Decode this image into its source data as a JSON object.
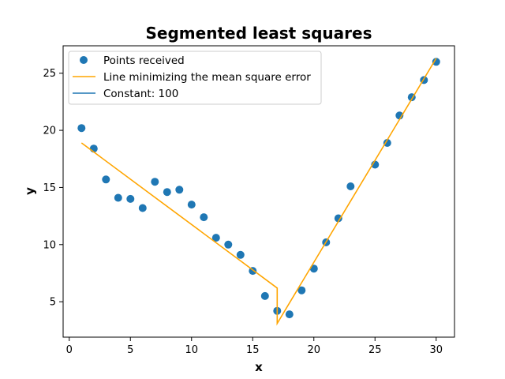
{
  "chart_data": {
    "type": "scatter",
    "title": "Segmented least squares",
    "xlabel": "x",
    "ylabel": "y",
    "xlim": [
      -0.5,
      31.5
    ],
    "ylim": [
      1.9,
      27.4
    ],
    "xticks": [
      0,
      5,
      10,
      15,
      20,
      25,
      30
    ],
    "yticks": [
      5,
      10,
      15,
      20,
      25
    ],
    "grid": false,
    "legend_position": "top-left",
    "colors": {
      "points": "#1f77b4",
      "fit": "#ffa500",
      "constant": "#1f77b4"
    },
    "series": [
      {
        "name": "Points received",
        "kind": "scatter",
        "x": [
          1,
          2,
          3,
          4,
          5,
          6,
          7,
          8,
          9,
          10,
          11,
          12,
          13,
          14,
          15,
          16,
          17,
          18,
          19,
          20,
          21,
          22,
          23,
          25,
          26,
          27,
          28,
          29,
          30
        ],
        "y": [
          20.2,
          18.4,
          15.7,
          14.1,
          14.0,
          13.2,
          15.5,
          14.6,
          14.8,
          13.5,
          12.4,
          10.6,
          10.0,
          9.1,
          7.7,
          5.5,
          4.2,
          3.9,
          6.0,
          7.9,
          10.2,
          12.3,
          15.1,
          17.0,
          18.9,
          21.3,
          22.9,
          24.4,
          26.0
        ]
      },
      {
        "name": "Line minimizing the mean square error",
        "kind": "line",
        "x": [
          1,
          17,
          17,
          30
        ],
        "y": [
          18.9,
          6.2,
          3.1,
          26.3
        ]
      },
      {
        "name": "Constant: 100",
        "kind": "legend-only"
      }
    ]
  }
}
